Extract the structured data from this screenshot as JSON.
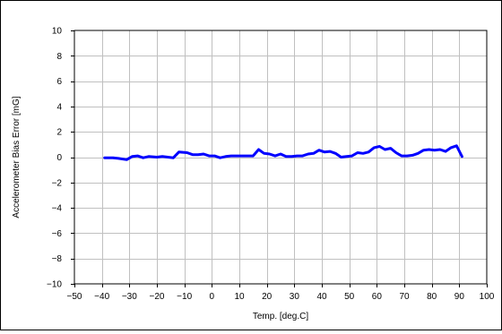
{
  "chart_data": {
    "type": "line",
    "title": "",
    "xlabel": "Temp. [deg.C]",
    "ylabel": "Accelerometer Bias Error [mG]",
    "xlim": [
      -50,
      100
    ],
    "ylim": [
      -10,
      10
    ],
    "x_ticks": [
      -50,
      -40,
      -30,
      -20,
      -10,
      0,
      10,
      20,
      30,
      40,
      50,
      60,
      70,
      80,
      90,
      100
    ],
    "y_ticks": [
      -10,
      -8,
      -6,
      -4,
      -2,
      0,
      2,
      4,
      6,
      8,
      10
    ],
    "x_tick_labels": [
      "−50",
      "−40",
      "−30",
      "−20",
      "−10",
      "0",
      "10",
      "20",
      "30",
      "40",
      "50",
      "60",
      "70",
      "80",
      "90",
      "100"
    ],
    "y_tick_labels": [
      "−10",
      "−8",
      "−6",
      "−4",
      "−2",
      "0",
      "2",
      "4",
      "6",
      "8",
      "10"
    ],
    "grid": true,
    "legend": "none",
    "series": [
      {
        "color": "#0000ff",
        "x": [
          -39,
          -36,
          -34,
          -31,
          -29,
          -27,
          -25,
          -23,
          -20,
          -18,
          -16,
          -14,
          -12,
          -9,
          -7,
          -5,
          -3,
          -1,
          1,
          3,
          5,
          7,
          9,
          11,
          13,
          15,
          17,
          19,
          21,
          23,
          25,
          27,
          29,
          31,
          33,
          35,
          37,
          39,
          41,
          43,
          45,
          47,
          49,
          51,
          53,
          55,
          57,
          59,
          61,
          63,
          65,
          67,
          69,
          71,
          73,
          75,
          77,
          79,
          81,
          83,
          85,
          87,
          89,
          91
        ],
        "y": [
          -0.05,
          -0.05,
          -0.1,
          -0.2,
          0.05,
          0.1,
          -0.05,
          0.05,
          0.0,
          0.05,
          0.0,
          -0.05,
          0.4,
          0.35,
          0.2,
          0.2,
          0.25,
          0.1,
          0.1,
          -0.05,
          0.05,
          0.1,
          0.1,
          0.1,
          0.1,
          0.1,
          0.6,
          0.3,
          0.25,
          0.1,
          0.25,
          0.05,
          0.05,
          0.1,
          0.1,
          0.25,
          0.3,
          0.55,
          0.4,
          0.45,
          0.3,
          0.0,
          0.05,
          0.1,
          0.35,
          0.3,
          0.4,
          0.75,
          0.85,
          0.6,
          0.7,
          0.35,
          0.1,
          0.1,
          0.15,
          0.3,
          0.55,
          0.6,
          0.55,
          0.6,
          0.45,
          0.75,
          0.9,
          0.05
        ]
      }
    ]
  }
}
